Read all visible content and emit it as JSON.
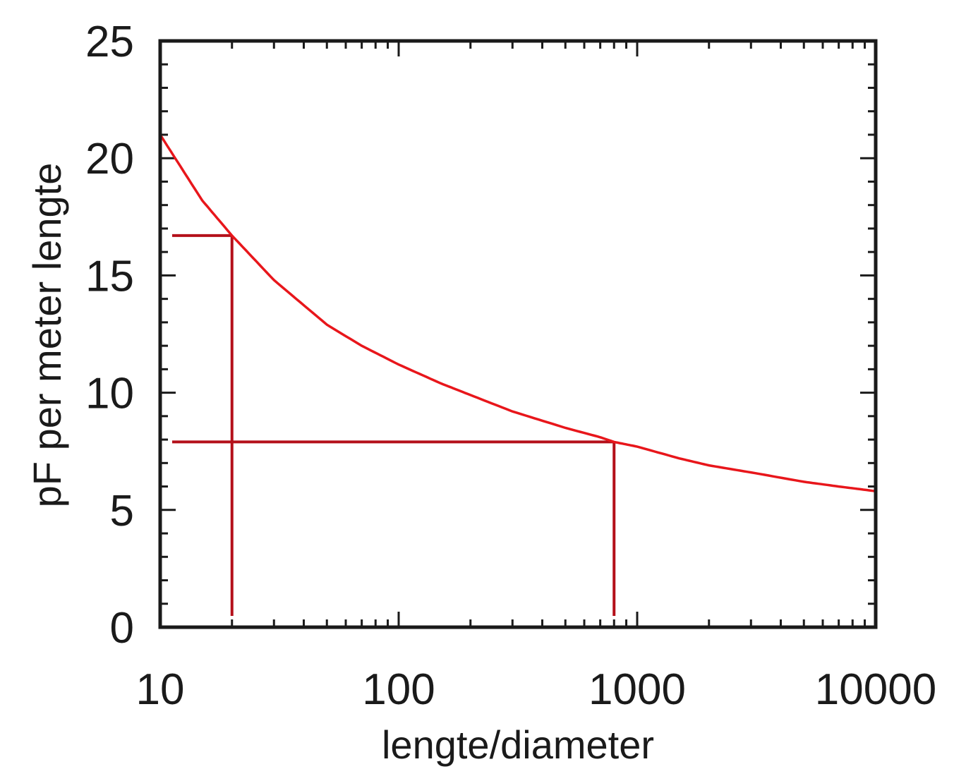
{
  "chart_data": {
    "type": "line",
    "xlabel": "lengte/diameter",
    "ylabel": "pF per meter lengte",
    "x_scale": "log",
    "xlim": [
      10,
      10000
    ],
    "ylim": [
      0,
      25
    ],
    "x_ticks": [
      "10",
      "100",
      "1000",
      "10000"
    ],
    "y_ticks": [
      "0",
      "5",
      "10",
      "15",
      "20",
      "25"
    ],
    "grid": false,
    "series": [
      {
        "color": "#e8161b",
        "x": [
          10,
          15,
          20,
          30,
          50,
          70,
          100,
          150,
          200,
          300,
          500,
          700,
          800,
          1000,
          1500,
          2000,
          3000,
          5000,
          7000,
          10000
        ],
        "y": [
          21.0,
          18.2,
          16.7,
          14.8,
          12.9,
          12.0,
          11.2,
          10.4,
          9.9,
          9.2,
          8.5,
          8.1,
          7.9,
          7.7,
          7.2,
          6.9,
          6.6,
          6.2,
          6.0,
          5.8
        ]
      }
    ],
    "guides": [
      {
        "x": 20,
        "y": 16.7,
        "color": "#b4101a"
      },
      {
        "x": 800,
        "y": 7.9,
        "color": "#b4101a"
      }
    ]
  }
}
